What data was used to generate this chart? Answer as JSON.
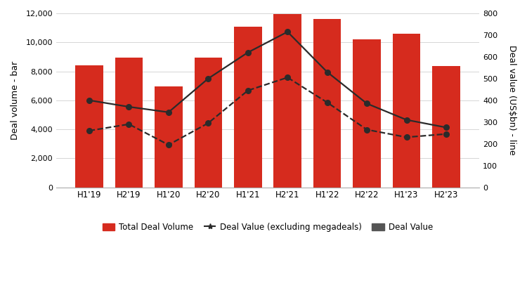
{
  "categories": [
    "H1'19",
    "H2'19",
    "H1'20",
    "H2'20",
    "H1'21",
    "H2'21",
    "H1'22",
    "H2'22",
    "H1'23",
    "H2'23"
  ],
  "bar_values": [
    8400,
    8950,
    6950,
    8950,
    11100,
    11950,
    11600,
    10200,
    10600,
    8350
  ],
  "deal_value": [
    400,
    370,
    345,
    500,
    620,
    715,
    530,
    385,
    310,
    275
  ],
  "deal_value_ex_mega": [
    260,
    290,
    195,
    295,
    445,
    505,
    390,
    265,
    230,
    245
  ],
  "bar_color": "#d62b1e",
  "line_solid_color": "#2b2b2b",
  "line_dashed_color": "#2b2b2b",
  "legend_square_color": "#555555",
  "ylabel_left": "Deal volume - bar",
  "ylabel_right": "Deal value (US$bn) - line",
  "ylim_left": [
    0,
    12000
  ],
  "ylim_right": [
    0,
    800
  ],
  "yticks_left": [
    0,
    2000,
    4000,
    6000,
    8000,
    10000,
    12000
  ],
  "yticks_right": [
    0,
    100,
    200,
    300,
    400,
    500,
    600,
    700,
    800
  ],
  "legend_labels": [
    "Total Deal Volume",
    "Deal Value (excluding megadeals)",
    "Deal Value"
  ],
  "background_color": "#ffffff",
  "grid_color": "#d0d0d0",
  "bar_width": 0.7
}
